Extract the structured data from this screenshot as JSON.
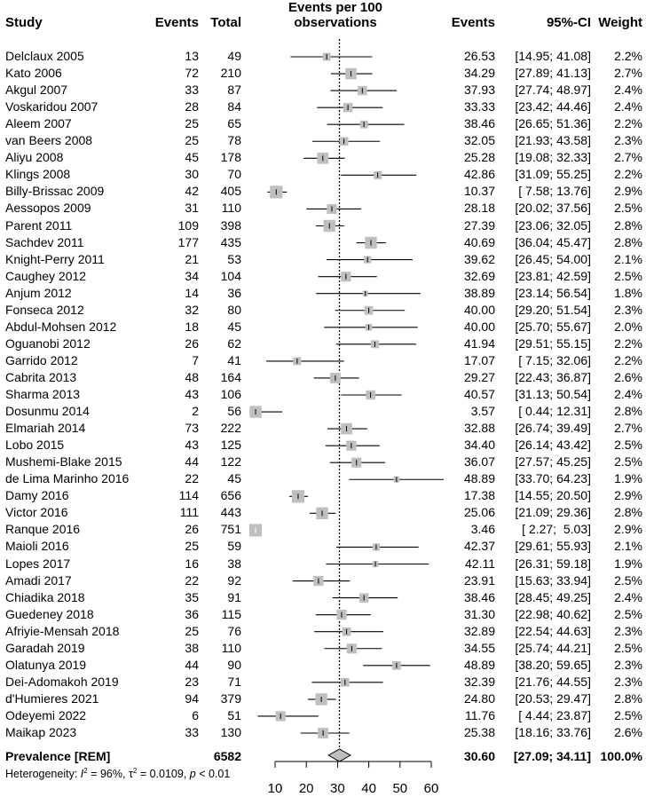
{
  "header": {
    "study": "Study",
    "events": "Events",
    "total": "Total",
    "plot_title_line1": "Events per 100",
    "plot_title_line2": "observations",
    "events_est": "Events",
    "ci": "95%-CI",
    "weight": "Weight"
  },
  "pooled": {
    "label": "Prevalence [REM]",
    "total": "6582",
    "events_est": "30.60",
    "ci": "[27.09; 34.11]",
    "weight": "100.0%"
  },
  "heterogeneity": {
    "prefix": "Heterogeneity: ",
    "i2_symbol": "I",
    "i2_value": " = 96%, ",
    "tau_symbol": "τ",
    "tau_value": " = 0.0109, ",
    "p_symbol": "p",
    "p_value": " < 0.01"
  },
  "chart_data": {
    "type": "forest",
    "xlim": [
      10,
      60
    ],
    "x_ticks": [
      10,
      20,
      30,
      40,
      50,
      60
    ],
    "x_tick_labels": [
      "10",
      "20",
      "30",
      "40",
      "50",
      "60"
    ],
    "reference_line": 30.6,
    "pooled": {
      "est": 30.6,
      "lo": 27.09,
      "hi": 34.11
    },
    "rows": [
      {
        "study": "Delclaux 2005",
        "events": "13",
        "total": "49",
        "est": 26.53,
        "lo": 14.95,
        "hi": 41.08,
        "est_text": "26.53",
        "ci_text": "[14.95; 41.08]",
        "weight": "2.2%"
      },
      {
        "study": "Kato 2006",
        "events": "72",
        "total": "210",
        "est": 34.29,
        "lo": 27.89,
        "hi": 41.13,
        "est_text": "34.29",
        "ci_text": "[27.89; 41.13]",
        "weight": "2.7%"
      },
      {
        "study": "Akgul 2007",
        "events": "33",
        "total": "87",
        "est": 37.93,
        "lo": 27.74,
        "hi": 48.97,
        "est_text": "37.93",
        "ci_text": "[27.74; 48.97]",
        "weight": "2.4%"
      },
      {
        "study": "Voskaridou 2007",
        "events": "28",
        "total": "84",
        "est": 33.33,
        "lo": 23.42,
        "hi": 44.46,
        "est_text": "33.33",
        "ci_text": "[23.42; 44.46]",
        "weight": "2.4%"
      },
      {
        "study": "Aleem 2007",
        "events": "25",
        "total": "65",
        "est": 38.46,
        "lo": 26.65,
        "hi": 51.36,
        "est_text": "38.46",
        "ci_text": "[26.65; 51.36]",
        "weight": "2.2%"
      },
      {
        "study": "van Beers 2008",
        "events": "25",
        "total": "78",
        "est": 32.05,
        "lo": 21.93,
        "hi": 43.58,
        "est_text": "32.05",
        "ci_text": "[21.93; 43.58]",
        "weight": "2.3%"
      },
      {
        "study": "Aliyu 2008",
        "events": "45",
        "total": "178",
        "est": 25.28,
        "lo": 19.08,
        "hi": 32.33,
        "est_text": "25.28",
        "ci_text": "[19.08; 32.33]",
        "weight": "2.7%"
      },
      {
        "study": "Klings 2008",
        "events": "30",
        "total": "70",
        "est": 42.86,
        "lo": 31.09,
        "hi": 55.25,
        "est_text": "42.86",
        "ci_text": "[31.09; 55.25]",
        "weight": "2.2%"
      },
      {
        "study": "Billy-Brissac 2009",
        "events": "42",
        "total": "405",
        "est": 10.37,
        "lo": 7.58,
        "hi": 13.76,
        "est_text": "10.37",
        "ci_text": "[ 7.58; 13.76]",
        "weight": "2.9%"
      },
      {
        "study": "Aessopos 2009",
        "events": "31",
        "total": "110",
        "est": 28.18,
        "lo": 20.02,
        "hi": 37.56,
        "est_text": "28.18",
        "ci_text": "[20.02; 37.56]",
        "weight": "2.5%"
      },
      {
        "study": "Parent 2011",
        "events": "109",
        "total": "398",
        "est": 27.39,
        "lo": 23.06,
        "hi": 32.05,
        "est_text": "27.39",
        "ci_text": "[23.06; 32.05]",
        "weight": "2.8%"
      },
      {
        "study": "Sachdev 2011",
        "events": "177",
        "total": "435",
        "est": 40.69,
        "lo": 36.04,
        "hi": 45.47,
        "est_text": "40.69",
        "ci_text": "[36.04; 45.47]",
        "weight": "2.8%"
      },
      {
        "study": "Knight-Perry 2011",
        "events": "21",
        "total": "53",
        "est": 39.62,
        "lo": 26.45,
        "hi": 54.0,
        "est_text": "39.62",
        "ci_text": "[26.45; 54.00]",
        "weight": "2.1%"
      },
      {
        "study": "Caughey 2012",
        "events": "34",
        "total": "104",
        "est": 32.69,
        "lo": 23.81,
        "hi": 42.59,
        "est_text": "32.69",
        "ci_text": "[23.81; 42.59]",
        "weight": "2.5%"
      },
      {
        "study": "Anjum 2012",
        "events": "14",
        "total": "36",
        "est": 38.89,
        "lo": 23.14,
        "hi": 56.54,
        "est_text": "38.89",
        "ci_text": "[23.14; 56.54]",
        "weight": "1.8%"
      },
      {
        "study": "Fonseca 2012",
        "events": "32",
        "total": "80",
        "est": 40.0,
        "lo": 29.2,
        "hi": 51.54,
        "est_text": "40.00",
        "ci_text": "[29.20; 51.54]",
        "weight": "2.3%"
      },
      {
        "study": "Abdul-Mohsen 2012",
        "events": "18",
        "total": "45",
        "est": 40.0,
        "lo": 25.7,
        "hi": 55.67,
        "est_text": "40.00",
        "ci_text": "[25.70; 55.67]",
        "weight": "2.0%"
      },
      {
        "study": "Oguanobi 2012",
        "events": "26",
        "total": "62",
        "est": 41.94,
        "lo": 29.51,
        "hi": 55.15,
        "est_text": "41.94",
        "ci_text": "[29.51; 55.15]",
        "weight": "2.2%"
      },
      {
        "study": "Garrido 2012",
        "events": "7",
        "total": "41",
        "est": 17.07,
        "lo": 7.15,
        "hi": 32.06,
        "est_text": "17.07",
        "ci_text": "[ 7.15; 32.06]",
        "weight": "2.2%"
      },
      {
        "study": "Cabrita 2013",
        "events": "48",
        "total": "164",
        "est": 29.27,
        "lo": 22.43,
        "hi": 36.87,
        "est_text": "29.27",
        "ci_text": "[22.43; 36.87]",
        "weight": "2.6%"
      },
      {
        "study": "Sharma 2013",
        "events": "43",
        "total": "106",
        "est": 40.57,
        "lo": 31.13,
        "hi": 50.54,
        "est_text": "40.57",
        "ci_text": "[31.13; 50.54]",
        "weight": "2.4%"
      },
      {
        "study": "Dosunmu 2014",
        "events": "2",
        "total": "56",
        "est": 3.57,
        "lo": 0.44,
        "hi": 12.31,
        "est_text": "3.57",
        "ci_text": "[ 0.44; 12.31]",
        "weight": "2.8%"
      },
      {
        "study": "Elmariah 2014",
        "events": "73",
        "total": "222",
        "est": 32.88,
        "lo": 26.74,
        "hi": 39.49,
        "est_text": "32.88",
        "ci_text": "[26.74; 39.49]",
        "weight": "2.7%"
      },
      {
        "study": "Lobo 2015",
        "events": "43",
        "total": "125",
        "est": 34.4,
        "lo": 26.14,
        "hi": 43.42,
        "est_text": "34.40",
        "ci_text": "[26.14; 43.42]",
        "weight": "2.5%"
      },
      {
        "study": "Mushemi-Blake 2015",
        "events": "44",
        "total": "122",
        "est": 36.07,
        "lo": 27.57,
        "hi": 45.25,
        "est_text": "36.07",
        "ci_text": "[27.57; 45.25]",
        "weight": "2.5%"
      },
      {
        "study": "de Lima Marinho 2016",
        "events": "22",
        "total": "45",
        "est": 48.89,
        "lo": 33.7,
        "hi": 64.23,
        "est_text": "48.89",
        "ci_text": "[33.70; 64.23]",
        "weight": "1.9%"
      },
      {
        "study": "Damy 2016",
        "events": "114",
        "total": "656",
        "est": 17.38,
        "lo": 14.55,
        "hi": 20.5,
        "est_text": "17.38",
        "ci_text": "[14.55; 20.50]",
        "weight": "2.9%"
      },
      {
        "study": "Victor 2016",
        "events": "111",
        "total": "443",
        "est": 25.06,
        "lo": 21.09,
        "hi": 29.36,
        "est_text": "25.06",
        "ci_text": "[21.09; 29.36]",
        "weight": "2.8%"
      },
      {
        "study": "Ranque 2016",
        "events": "26",
        "total": "751",
        "est": 3.46,
        "lo": 2.27,
        "hi": 5.03,
        "est_text": "3.46",
        "ci_text": "[ 2.27;  5.03]",
        "weight": "2.9%"
      },
      {
        "study": "Maioli 2016",
        "events": "25",
        "total": "59",
        "est": 42.37,
        "lo": 29.61,
        "hi": 55.93,
        "est_text": "42.37",
        "ci_text": "[29.61; 55.93]",
        "weight": "2.1%"
      },
      {
        "study": "Lopes 2017",
        "events": "16",
        "total": "38",
        "est": 42.11,
        "lo": 26.31,
        "hi": 59.18,
        "est_text": "42.11",
        "ci_text": "[26.31; 59.18]",
        "weight": "1.9%"
      },
      {
        "study": "Amadi 2017",
        "events": "22",
        "total": "92",
        "est": 23.91,
        "lo": 15.63,
        "hi": 33.94,
        "est_text": "23.91",
        "ci_text": "[15.63; 33.94]",
        "weight": "2.5%"
      },
      {
        "study": "Chiadika 2018",
        "events": "35",
        "total": "91",
        "est": 38.46,
        "lo": 28.45,
        "hi": 49.25,
        "est_text": "38.46",
        "ci_text": "[28.45; 49.25]",
        "weight": "2.4%"
      },
      {
        "study": "Guedeney 2018",
        "events": "36",
        "total": "115",
        "est": 31.3,
        "lo": 22.98,
        "hi": 40.62,
        "est_text": "31.30",
        "ci_text": "[22.98; 40.62]",
        "weight": "2.5%"
      },
      {
        "study": "Afriyie-Mensah 2018",
        "events": "25",
        "total": "76",
        "est": 32.89,
        "lo": 22.54,
        "hi": 44.63,
        "est_text": "32.89",
        "ci_text": "[22.54; 44.63]",
        "weight": "2.3%"
      },
      {
        "study": "Garadah 2019",
        "events": "38",
        "total": "110",
        "est": 34.55,
        "lo": 25.74,
        "hi": 44.21,
        "est_text": "34.55",
        "ci_text": "[25.74; 44.21]",
        "weight": "2.5%"
      },
      {
        "study": "Olatunya 2019",
        "events": "44",
        "total": "90",
        "est": 48.89,
        "lo": 38.2,
        "hi": 59.65,
        "est_text": "48.89",
        "ci_text": "[38.20; 59.65]",
        "weight": "2.3%"
      },
      {
        "study": "Dei-Adomakoh 2019",
        "events": "23",
        "total": "71",
        "est": 32.39,
        "lo": 21.76,
        "hi": 44.55,
        "est_text": "32.39",
        "ci_text": "[21.76; 44.55]",
        "weight": "2.3%"
      },
      {
        "study": "d'Humieres 2021",
        "events": "94",
        "total": "379",
        "est": 24.8,
        "lo": 20.53,
        "hi": 29.47,
        "est_text": "24.80",
        "ci_text": "[20.53; 29.47]",
        "weight": "2.8%"
      },
      {
        "study": "Odeyemi 2022",
        "events": "6",
        "total": "51",
        "est": 11.76,
        "lo": 4.44,
        "hi": 23.87,
        "est_text": "11.76",
        "ci_text": "[ 4.44; 23.87]",
        "weight": "2.5%"
      },
      {
        "study": "Maikap 2023",
        "events": "33",
        "total": "130",
        "est": 25.38,
        "lo": 18.16,
        "hi": 33.76,
        "est_text": "25.38",
        "ci_text": "[18.16; 33.76]",
        "weight": "2.6%"
      }
    ]
  }
}
